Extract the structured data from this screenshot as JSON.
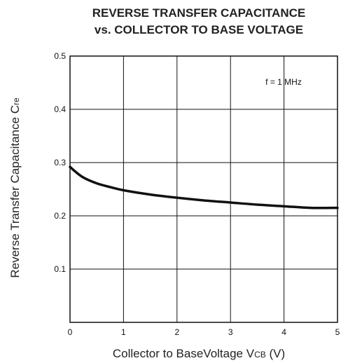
{
  "chart_data": {
    "type": "line",
    "title_line1": "REVERSE TRANSFER CAPACITANCE",
    "title_line2": "vs. COLLECTOR TO BASE VOLTAGE",
    "xlabel": {
      "main": "Collector to BaseVoltage V",
      "subscript": "CB",
      "unit": " (V)"
    },
    "ylabel": {
      "main": "Reverse Transfer Capacitance C",
      "subscript": "re"
    },
    "annotation": "f = 1 MHz",
    "xlim": [
      0,
      5
    ],
    "ylim": [
      0,
      0.5
    ],
    "x_ticks": [
      "0",
      "1",
      "2",
      "3",
      "4",
      "5"
    ],
    "y_ticks": [
      "0.1",
      "0.2",
      "0.3",
      "0.4",
      "0.5"
    ],
    "grid": true,
    "series": [
      {
        "x": [
          0,
          0.1,
          0.25,
          0.5,
          0.75,
          1.0,
          1.5,
          2.0,
          2.5,
          3.0,
          3.5,
          4.0,
          4.5,
          5.0
        ],
        "y": [
          0.292,
          0.283,
          0.272,
          0.261,
          0.254,
          0.248,
          0.24,
          0.234,
          0.229,
          0.225,
          0.221,
          0.218,
          0.215,
          0.215
        ]
      }
    ],
    "line_color": "#111111"
  }
}
